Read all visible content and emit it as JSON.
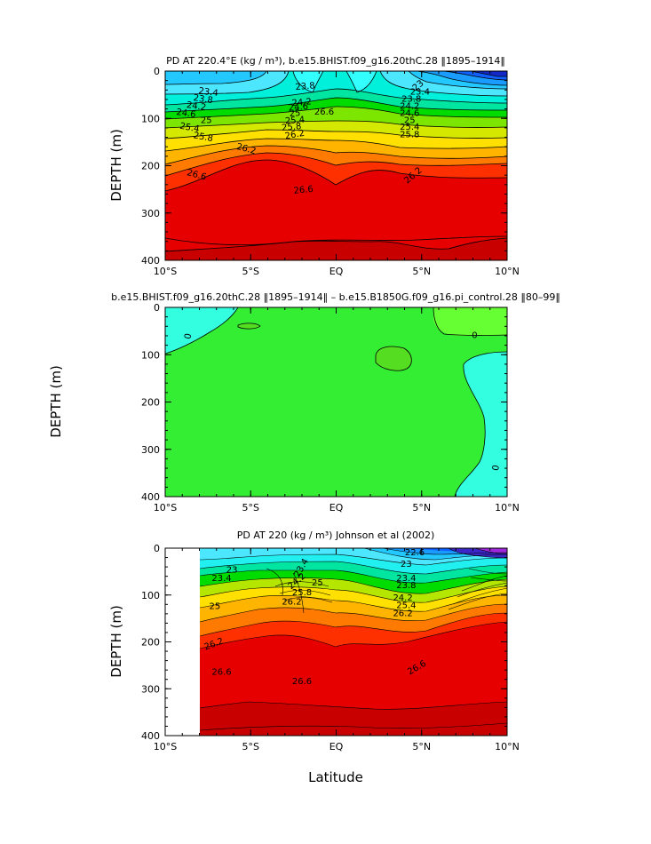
{
  "figure": {
    "xlabel": "Latitude"
  },
  "chart_data": [
    {
      "type": "contour",
      "title": "PD AT 220.4°E (kg / m³), b.e15.BHIST.f09_g16.20thC.28 ‖1895–1914‖",
      "ylabel": "DEPTH (m)",
      "xlim": [
        -10,
        10
      ],
      "ylim": [
        400,
        0
      ],
      "x_ticks": [
        "10°S",
        "5°S",
        "EQ",
        "5°N",
        "10°N"
      ],
      "y_ticks": [
        "0",
        "100",
        "200",
        "300",
        "400"
      ],
      "contour_labels": [
        "23.4",
        "23.8",
        "24.2",
        "24.6",
        "25",
        "25.4",
        "25.8",
        "26.2",
        "26.6",
        "23.8",
        "24.2",
        "24.6",
        "25",
        "25.4",
        "25.8",
        "26.2",
        "26.6",
        "23",
        "23.4",
        "23.8",
        "24.2",
        "24.6",
        "25",
        "25.4",
        "25.8",
        "26.2",
        "26.6",
        "25"
      ],
      "levels": [
        22.6,
        23.0,
        23.4,
        23.8,
        24.2,
        24.6,
        25.0,
        25.4,
        25.8,
        26.2,
        26.6
      ]
    },
    {
      "type": "contour",
      "title": "b.e15.BHIST.f09_g16.20thC.28 ‖1895–1914‖ – b.e15.B1850G.f09_g16.pi_control.28 ‖80–99‖",
      "ylabel": "DEPTH (m)",
      "xlim": [
        -10,
        10
      ],
      "ylim": [
        400,
        0
      ],
      "x_ticks": [
        "10°S",
        "5°S",
        "EQ",
        "5°N",
        "10°N"
      ],
      "y_ticks": [
        "0",
        "100",
        "200",
        "300",
        "400"
      ],
      "contour_labels": [
        "0",
        "0",
        "0"
      ]
    },
    {
      "type": "contour",
      "title": "PD AT 220 (kg / m³) Johnson et al (2002)",
      "ylabel": "DEPTH (m)",
      "xlim": [
        -10,
        10
      ],
      "ylim": [
        400,
        0
      ],
      "data_xlim": [
        -8,
        10
      ],
      "x_ticks": [
        "10°S",
        "5°S",
        "EQ",
        "5°N",
        "10°N"
      ],
      "y_ticks": [
        "0",
        "100",
        "200",
        "300",
        "400"
      ],
      "contour_labels": [
        "23",
        "23.4",
        "25",
        "26.2",
        "26.6",
        "26.6",
        "23.4",
        "24.2",
        "25",
        "25.8",
        "26.2",
        "22.6",
        "23",
        "23.4",
        "23.8",
        "24.2",
        "25.4",
        "26.2",
        "26.6"
      ]
    }
  ]
}
